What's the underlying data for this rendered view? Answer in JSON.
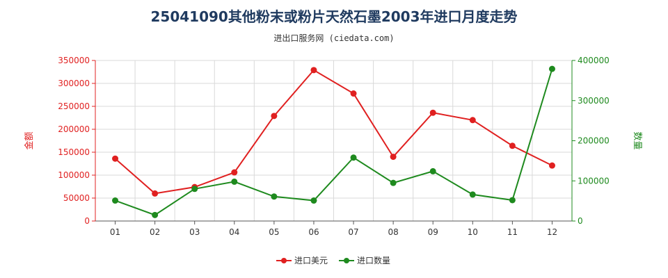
{
  "chart_data": {
    "type": "line",
    "title": "25041090其他粉末或粉片天然石墨2003年进口月度走势",
    "subtitle": "进出口服务网 (ciedata.com)",
    "categories": [
      "01",
      "02",
      "03",
      "04",
      "05",
      "06",
      "07",
      "08",
      "09",
      "10",
      "11",
      "12"
    ],
    "left_axis": {
      "label": "金额",
      "range": [
        0,
        350000
      ],
      "ticks": [
        "0",
        "50000",
        "100000",
        "150000",
        "200000",
        "250000",
        "300000",
        "350000"
      ],
      "color": "#e02020"
    },
    "right_axis": {
      "label": "数量",
      "range": [
        0,
        400000
      ],
      "ticks": [
        "0",
        "100000",
        "200000",
        "300000",
        "400000"
      ],
      "color": "#1e8a1e"
    },
    "series": [
      {
        "name": "进口美元",
        "axis": "left",
        "color": "#e02020",
        "values": [
          136000,
          60000,
          74000,
          106000,
          229000,
          329000,
          278000,
          140000,
          236000,
          220000,
          164000,
          121000
        ]
      },
      {
        "name": "进口数量",
        "axis": "right",
        "color": "#1e8a1e",
        "values": [
          51000,
          15000,
          80000,
          98000,
          61000,
          51000,
          158000,
          95000,
          124000,
          66000,
          52000,
          379000
        ]
      }
    ],
    "grid": true,
    "legend_position": "bottom-center"
  }
}
